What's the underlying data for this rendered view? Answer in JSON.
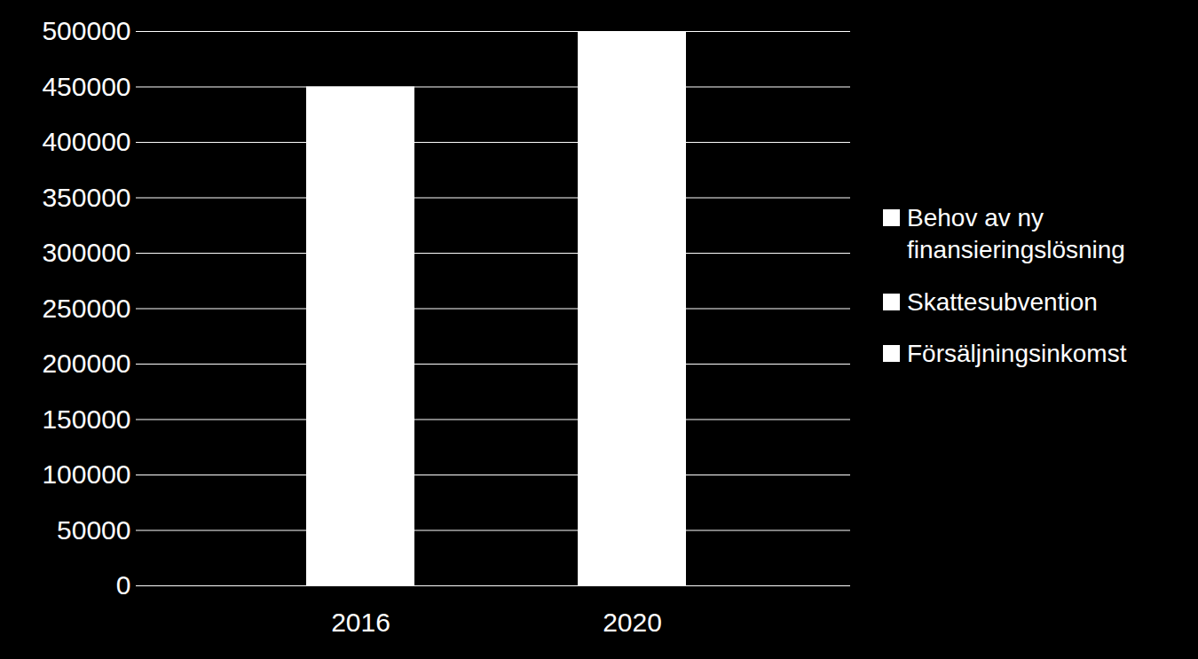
{
  "chart_data": {
    "type": "bar",
    "stacked": true,
    "categories": [
      "2016",
      "2020"
    ],
    "series": [
      {
        "name": "Försäljningsinkomst",
        "color": "#ffffff",
        "values": [
          450000,
          500000
        ]
      },
      {
        "name": "Skattesubvention",
        "color": "#ffffff",
        "values": [
          0,
          0
        ]
      },
      {
        "name": "Behov av ny finansieringslösning",
        "color": "#ffffff",
        "values": [
          0,
          0
        ]
      }
    ],
    "ylim": [
      0,
      500000
    ],
    "yticks": [
      0,
      50000,
      100000,
      150000,
      200000,
      250000,
      300000,
      350000,
      400000,
      450000,
      500000
    ],
    "grid": true,
    "legend": "right"
  }
}
